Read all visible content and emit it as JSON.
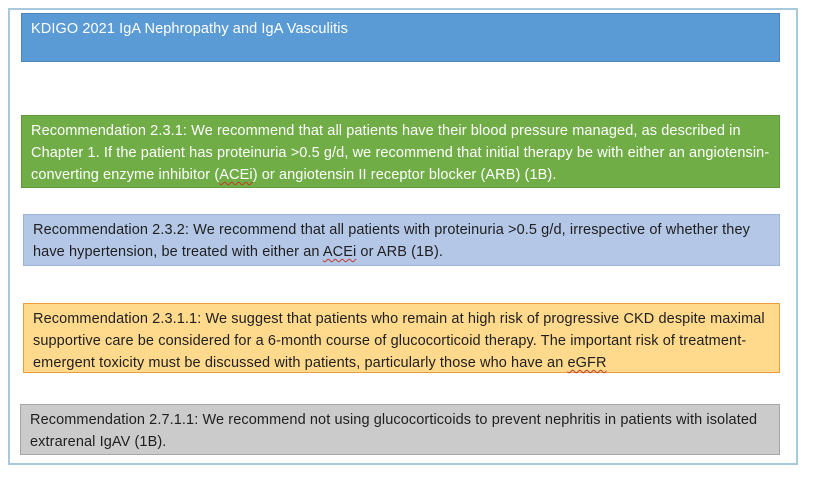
{
  "slide": {
    "title": "KDIGO 2021 IgA Nephropathy and IgA Vasculitis"
  },
  "colors": {
    "frame_border": "#a8c8de",
    "title_blue": "#5b9bd5",
    "green": "#70ad47",
    "periwinkle": "#b4c7e7",
    "gold": "#ffd98c",
    "gray": "#cbcbcb",
    "spellcheck_underline": "#c0392b"
  },
  "boxes": [
    {
      "name": "title-banner",
      "bg": "#5b9bd5",
      "border": "#4a85bd",
      "text_color": "#ffffff",
      "valign": "top",
      "segments": [
        {
          "t": "KDIGO 2021 IgA Nephropathy and IgA Vasculitis"
        }
      ]
    },
    {
      "name": "recommendation-2.3.1",
      "bg": "#70ad47",
      "border": "#61993c",
      "text_color": "#ffffff",
      "segments": [
        {
          "t": "Recommendation 2.3.1: We recommend that all patients have their blood pressure managed, as described in Chapter 1. If the patient has proteinuria >0.5 g/d, we recommend that initial therapy be with either an angiotensin-converting enzyme inhibitor ("
        },
        {
          "t": "ACEi",
          "u": true
        },
        {
          "t": ") or angiotensin II receptor blocker (ARB) (1B)."
        }
      ]
    },
    {
      "name": "recommendation-2.3.2",
      "bg": "#b4c7e7",
      "border": "#9db4d9",
      "text_color": "#1f1f1f",
      "segments": [
        {
          "t": "Recommendation 2.3.2: We recommend that all patients with proteinuria >0.5 g/d, irrespective of whether they have hypertension, be treated with either an "
        },
        {
          "t": "ACEi",
          "u": true
        },
        {
          "t": " or ARB (1B)."
        }
      ]
    },
    {
      "name": "recommendation-2.3.1.1",
      "bg": "#ffd98c",
      "border": "#ec9d3c",
      "text_color": "#1f1f1f",
      "segments": [
        {
          "t": "Recommendation 2.3.1.1: We suggest that patients who remain at high risk of progressive CKD despite maximal supportive care be considered for a 6-month course of glucocorticoid therapy. The important risk of treatment-emergent toxicity must be discussed with patients, particularly those who have an "
        },
        {
          "t": "eGFR",
          "u": true
        }
      ]
    },
    {
      "name": "recommendation-2.7.1.1",
      "bg": "#cbcbcb",
      "border": "#a6a6a6",
      "text_color": "#1f1f1f",
      "segments": [
        {
          "t": "Recommendation 2.7.1.1: We recommend not using glucocorticoids to prevent nephritis in patients with isolated extrarenal IgAV (1B)."
        }
      ]
    }
  ]
}
